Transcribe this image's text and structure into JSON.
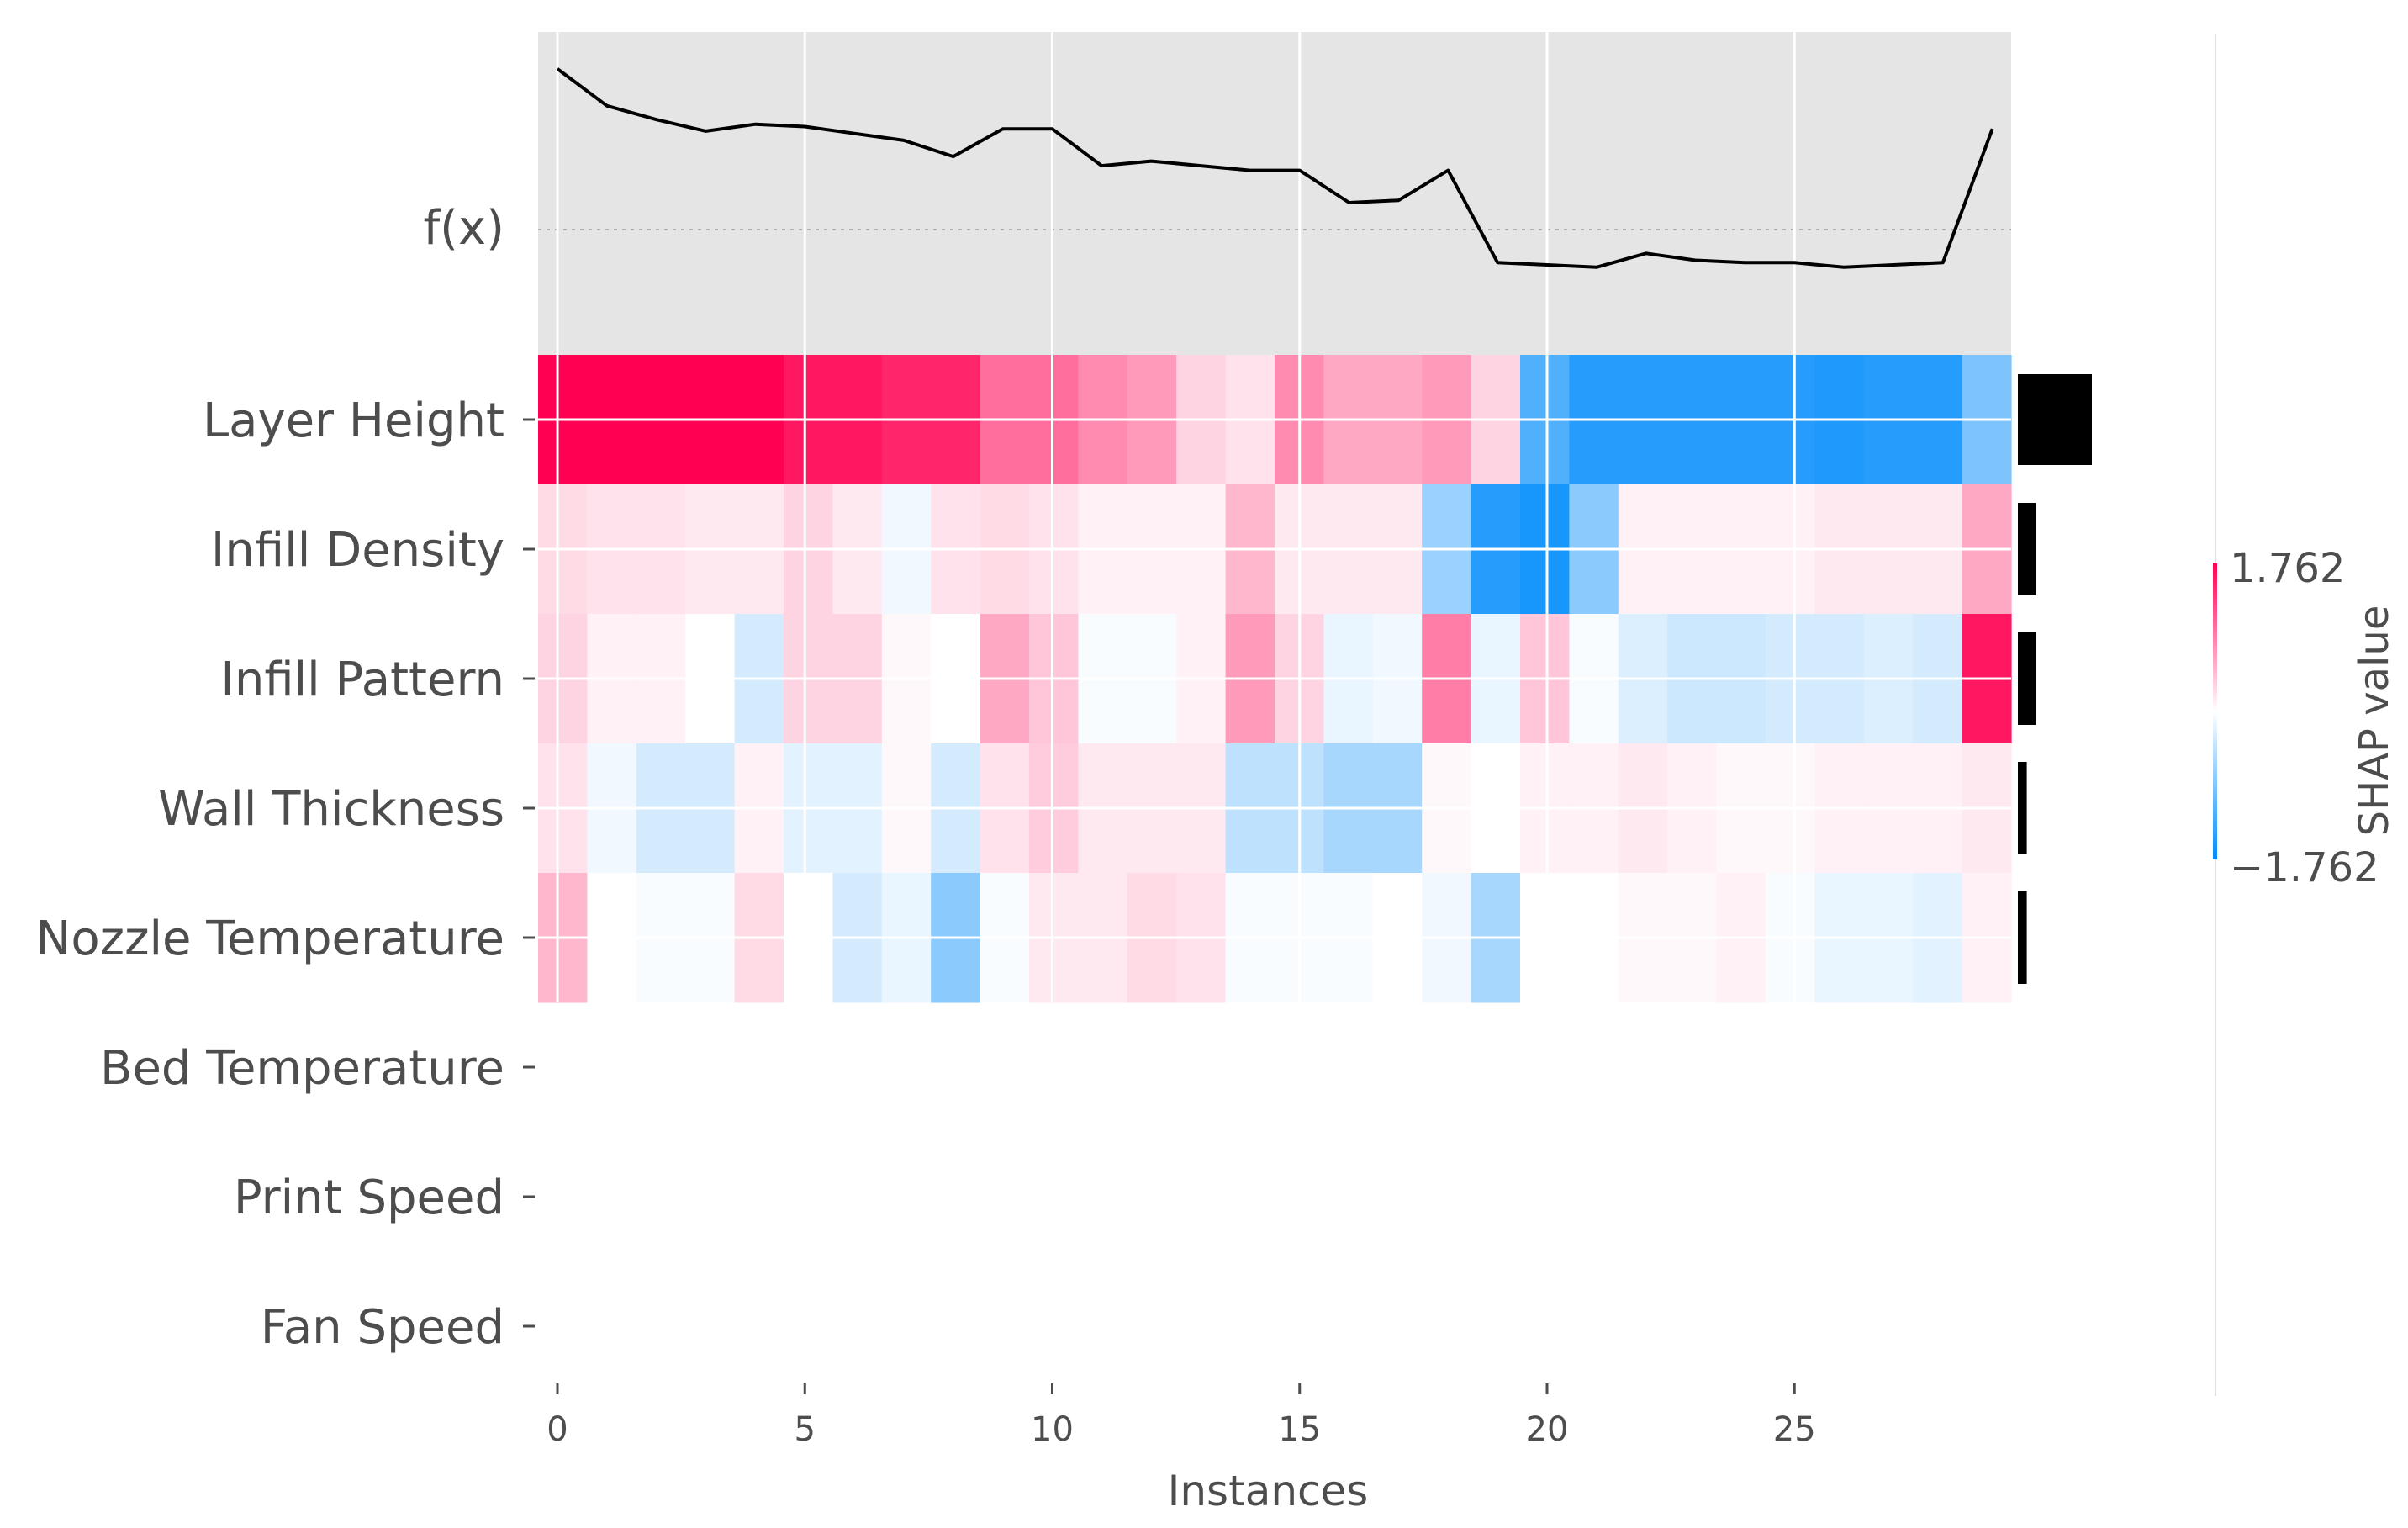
{
  "chart_data": {
    "type": "heatmap",
    "title": "",
    "xlabel": "Instances",
    "fx_label": "f(x)",
    "x_ticks": [
      0,
      5,
      10,
      15,
      20,
      25
    ],
    "features": [
      "Layer Height",
      "Infill Density",
      "Infill Pattern",
      "Wall Thickness",
      "Nozzle Temperature",
      "Bed Temperature",
      "Print Speed",
      "Fan Speed"
    ],
    "fx": [
      0.92,
      0.84,
      0.81,
      0.785,
      0.8,
      0.795,
      0.78,
      0.765,
      0.73,
      0.79,
      0.79,
      0.71,
      0.72,
      0.71,
      0.7,
      0.7,
      0.63,
      0.635,
      0.7,
      0.5,
      0.495,
      0.49,
      0.52,
      0.505,
      0.5,
      0.5,
      0.49,
      0.495,
      0.5,
      0.79
    ],
    "shap_values": [
      [
        1.76,
        1.76,
        1.76,
        1.76,
        1.76,
        1.6,
        1.6,
        1.5,
        1.5,
        1.0,
        1.0,
        0.8,
        0.7,
        0.3,
        0.2,
        0.8,
        0.6,
        0.6,
        0.7,
        0.3,
        -1.2,
        -1.5,
        -1.5,
        -1.5,
        -1.5,
        -1.5,
        -1.55,
        -1.5,
        -1.5,
        -0.9
      ],
      [
        0.25,
        0.2,
        0.2,
        0.15,
        0.15,
        0.3,
        0.15,
        -0.1,
        0.2,
        0.25,
        0.2,
        0.1,
        0.1,
        0.1,
        0.5,
        0.15,
        0.15,
        0.15,
        -0.7,
        -1.5,
        -1.6,
        -0.8,
        0.1,
        0.1,
        0.1,
        0.1,
        0.15,
        0.15,
        0.15,
        0.6
      ],
      [
        0.3,
        0.1,
        0.1,
        0.0,
        -0.3,
        0.3,
        0.3,
        0.05,
        0.0,
        0.6,
        0.4,
        -0.05,
        -0.05,
        0.1,
        0.7,
        0.3,
        -0.15,
        -0.1,
        0.9,
        -0.15,
        0.4,
        -0.05,
        -0.25,
        -0.35,
        -0.35,
        -0.3,
        -0.3,
        -0.25,
        -0.3,
        1.6
      ],
      [
        0.2,
        -0.1,
        -0.3,
        -0.3,
        0.1,
        -0.2,
        -0.2,
        0.05,
        -0.3,
        0.2,
        0.35,
        0.15,
        0.15,
        0.15,
        -0.45,
        -0.45,
        -0.6,
        -0.6,
        0.05,
        0.0,
        0.1,
        0.1,
        0.15,
        0.1,
        0.05,
        0.05,
        0.1,
        0.1,
        0.1,
        0.15
      ],
      [
        0.5,
        0.0,
        -0.05,
        -0.05,
        0.25,
        0.0,
        -0.3,
        -0.15,
        -0.8,
        -0.05,
        0.15,
        0.15,
        0.25,
        0.2,
        -0.05,
        -0.05,
        -0.05,
        0.0,
        -0.1,
        -0.6,
        0.0,
        0.0,
        0.05,
        0.05,
        0.1,
        -0.05,
        -0.15,
        -0.15,
        -0.2,
        0.1
      ],
      [
        0,
        0,
        0,
        0,
        0,
        0,
        0,
        0,
        0,
        0,
        0,
        0,
        0,
        0,
        0,
        0,
        0,
        0,
        0,
        0,
        0,
        0,
        0,
        0,
        0,
        0,
        0,
        0,
        0,
        0
      ],
      [
        0,
        0,
        0,
        0,
        0,
        0,
        0,
        0,
        0,
        0,
        0,
        0,
        0,
        0,
        0,
        0,
        0,
        0,
        0,
        0,
        0,
        0,
        0,
        0,
        0,
        0,
        0,
        0,
        0,
        0
      ],
      [
        0,
        0,
        0,
        0,
        0,
        0,
        0,
        0,
        0,
        0,
        0,
        0,
        0,
        0,
        0,
        0,
        0,
        0,
        0,
        0,
        0,
        0,
        0,
        0,
        0,
        0,
        0,
        0,
        0,
        0
      ]
    ],
    "importance": [
      1.0,
      0.24,
      0.24,
      0.12,
      0.12,
      0,
      0,
      0
    ],
    "colorbar": {
      "max_label": "1.762",
      "min_label": "−1.762",
      "title": "SHAP value"
    },
    "colors": {
      "positive": "#ff0052",
      "negative": "#008bfb",
      "panel": "#e5e5e5",
      "bar": "#000000"
    }
  }
}
